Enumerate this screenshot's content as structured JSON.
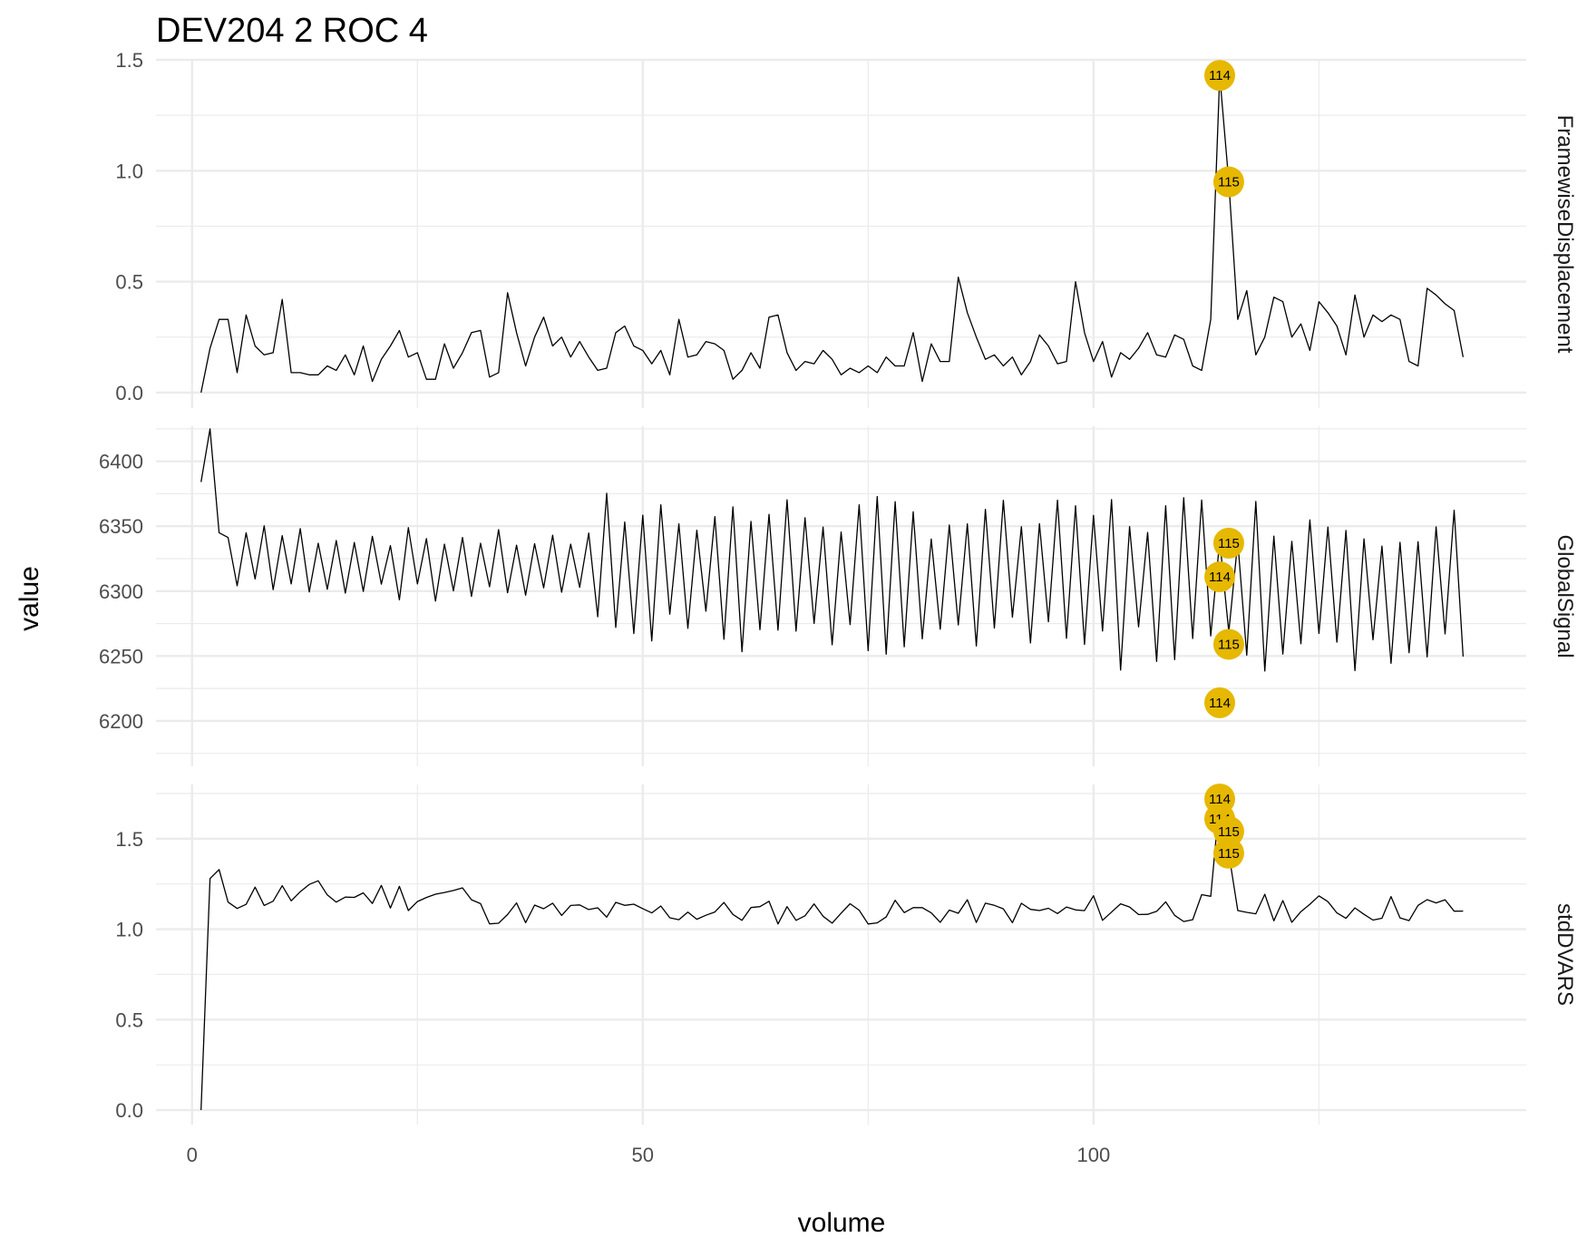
{
  "chart_data": {
    "type": "line",
    "title": "DEV204  2  ROC  4",
    "xlabel": "volume",
    "ylabel": "value",
    "xlim": [
      -4,
      148
    ],
    "x_ticks": [
      0,
      50,
      100
    ],
    "x_minor_ticks": [
      25,
      75,
      125
    ],
    "grid": true,
    "highlight_color": "#E6B800",
    "panels": [
      {
        "name": "FramewiseDisplacement",
        "ylim": [
          -0.07,
          1.5
        ],
        "y_ticks": [
          0.0,
          0.5,
          1.0,
          1.5
        ],
        "y_tick_labels": [
          "0.0",
          "0.5",
          "1.0",
          "1.5"
        ],
        "y_minor_ticks": [
          0.25,
          0.75,
          1.25
        ],
        "x": [
          1,
          2,
          3,
          4,
          5,
          6,
          7,
          8,
          9,
          10,
          11,
          12,
          13,
          14,
          15,
          16,
          17,
          18,
          19,
          20,
          21,
          22,
          23,
          24,
          25,
          26,
          27,
          28,
          29,
          30,
          31,
          32,
          33,
          34,
          35,
          36,
          37,
          38,
          39,
          40,
          41,
          42,
          43,
          44,
          45,
          46,
          47,
          48,
          49,
          50,
          51,
          52,
          53,
          54,
          55,
          56,
          57,
          58,
          59,
          60,
          61,
          62,
          63,
          64,
          65,
          66,
          67,
          68,
          69,
          70,
          71,
          72,
          73,
          74,
          75,
          76,
          77,
          78,
          79,
          80,
          81,
          82,
          83,
          84,
          85,
          86,
          87,
          88,
          89,
          90,
          91,
          92,
          93,
          94,
          95,
          96,
          97,
          98,
          99,
          100,
          101,
          102,
          103,
          104,
          105,
          106,
          107,
          108,
          109,
          110,
          111,
          112,
          113,
          114,
          115,
          116,
          117,
          118,
          119,
          120,
          121,
          122,
          123,
          124,
          125,
          126,
          127,
          128,
          129,
          130,
          131,
          132,
          133,
          134,
          135,
          136,
          137,
          138,
          139,
          140
        ],
        "values": [
          0.0,
          0.2,
          0.33,
          0.33,
          0.09,
          0.35,
          0.21,
          0.17,
          0.18,
          0.42,
          0.09,
          0.09,
          0.08,
          0.08,
          0.12,
          0.1,
          0.17,
          0.08,
          0.21,
          0.05,
          0.15,
          0.21,
          0.28,
          0.16,
          0.18,
          0.06,
          0.06,
          0.22,
          0.11,
          0.18,
          0.27,
          0.28,
          0.07,
          0.09,
          0.45,
          0.27,
          0.12,
          0.25,
          0.34,
          0.21,
          0.25,
          0.16,
          0.23,
          0.16,
          0.1,
          0.11,
          0.27,
          0.3,
          0.21,
          0.19,
          0.13,
          0.19,
          0.08,
          0.33,
          0.16,
          0.17,
          0.23,
          0.22,
          0.19,
          0.06,
          0.1,
          0.18,
          0.11,
          0.34,
          0.35,
          0.18,
          0.1,
          0.14,
          0.13,
          0.19,
          0.15,
          0.08,
          0.11,
          0.09,
          0.12,
          0.09,
          0.16,
          0.12,
          0.12,
          0.27,
          0.05,
          0.22,
          0.14,
          0.14,
          0.52,
          0.36,
          0.25,
          0.15,
          0.17,
          0.12,
          0.16,
          0.08,
          0.14,
          0.26,
          0.21,
          0.13,
          0.14,
          0.5,
          0.27,
          0.14,
          0.23,
          0.07,
          0.18,
          0.15,
          0.2,
          0.27,
          0.17,
          0.16,
          0.26,
          0.24,
          0.12,
          0.1,
          0.33,
          1.43,
          0.95,
          0.33,
          0.46,
          0.17,
          0.25,
          0.43,
          0.41,
          0.25,
          0.31,
          0.19,
          0.41,
          0.36,
          0.3,
          0.17,
          0.44,
          0.25,
          0.35,
          0.32,
          0.35,
          0.33,
          0.14,
          0.12,
          0.47,
          0.44,
          0.4,
          0.37
        ],
        "extra_segment_end": {
          "x": 141,
          "value": 0.16
        },
        "outliers": [
          {
            "x": 114,
            "value": 1.43,
            "label": "114"
          },
          {
            "x": 115,
            "value": 0.95,
            "label": "115"
          }
        ]
      },
      {
        "name": "GlobalSignal",
        "ylim": [
          6165,
          6427
        ],
        "y_ticks": [
          6200,
          6250,
          6300,
          6350,
          6400
        ],
        "y_tick_labels": [
          "6200",
          "6250",
          "6300",
          "6350",
          "6400"
        ],
        "y_minor_ticks": [
          6175,
          6225,
          6275,
          6325,
          6375,
          6425
        ],
        "outliers": [
          {
            "x": 114,
            "value": 6311,
            "label": "114"
          },
          {
            "x": 114,
            "value": 6214,
            "label": "114"
          },
          {
            "x": 115,
            "value": 6337,
            "label": "115"
          },
          {
            "x": 115,
            "value": 6259,
            "label": "115"
          }
        ]
      },
      {
        "name": "stdDVARS",
        "ylim": [
          -0.08,
          1.8
        ],
        "y_ticks": [
          0.0,
          0.5,
          1.0,
          1.5
        ],
        "y_tick_labels": [
          "0.0",
          "0.5",
          "1.0",
          "1.5"
        ],
        "y_minor_ticks": [
          0.25,
          0.75,
          1.25,
          1.75
        ],
        "outliers": [
          {
            "x": 114,
            "value": 1.72,
            "label": "114"
          },
          {
            "x": 114,
            "value": 1.61,
            "label": "114"
          },
          {
            "x": 115,
            "value": 1.54,
            "label": "115"
          },
          {
            "x": 115,
            "value": 1.42,
            "label": "115"
          }
        ]
      }
    ]
  }
}
